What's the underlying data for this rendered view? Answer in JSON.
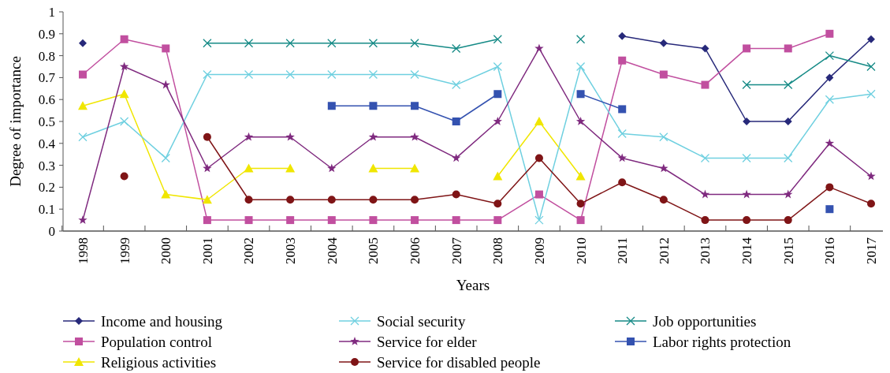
{
  "chart_data": {
    "type": "line",
    "xlabel": "Years",
    "ylabel": "Degree of importance",
    "categories": [
      "1998",
      "1999",
      "2000",
      "2001",
      "2002",
      "2003",
      "2004",
      "2005",
      "2006",
      "2007",
      "2008",
      "2009",
      "2010",
      "2011",
      "2012",
      "2013",
      "2014",
      "2015",
      "2016",
      "2017"
    ],
    "ylim": [
      0,
      1
    ],
    "yticks": [
      0,
      0.1,
      0.2,
      0.3,
      0.4,
      0.5,
      0.6,
      0.7,
      0.8,
      0.9,
      1
    ],
    "grid": false,
    "legend": "bottom",
    "series": [
      {
        "name": "Income and housing",
        "color": "#27297a",
        "marker": "diamond",
        "values": [
          0.857,
          null,
          null,
          null,
          null,
          null,
          null,
          null,
          null,
          null,
          null,
          null,
          null,
          0.889,
          0.857,
          0.833,
          0.5,
          0.5,
          0.7,
          0.875
        ]
      },
      {
        "name": "Population control",
        "color": "#c14f9f",
        "marker": "square",
        "values": [
          0.714,
          0.875,
          0.833,
          0.05,
          0.05,
          0.05,
          0.05,
          0.05,
          0.05,
          0.05,
          0.05,
          0.167,
          0.05,
          0.778,
          0.714,
          0.667,
          0.833,
          0.833,
          0.9,
          null
        ]
      },
      {
        "name": "Religious activities",
        "color": "#f0e600",
        "marker": "triangle",
        "values": [
          0.571,
          0.625,
          0.167,
          0.143,
          0.286,
          0.286,
          null,
          0.286,
          0.286,
          null,
          0.25,
          0.5,
          0.25,
          null,
          null,
          null,
          null,
          null,
          null,
          null
        ]
      },
      {
        "name": "Social security",
        "color": "#6fd0e0",
        "marker": "cross",
        "values": [
          0.429,
          0.5,
          0.333,
          0.714,
          0.714,
          0.714,
          0.714,
          0.714,
          0.714,
          0.667,
          0.75,
          0.05,
          0.75,
          0.444,
          0.429,
          0.333,
          0.333,
          0.333,
          0.6,
          0.625
        ]
      },
      {
        "name": "Service for elder",
        "color": "#7f2a7f",
        "marker": "star",
        "values": [
          0.05,
          0.75,
          0.667,
          0.286,
          0.429,
          0.429,
          0.286,
          0.429,
          0.429,
          0.333,
          0.5,
          0.833,
          0.5,
          0.333,
          0.286,
          0.167,
          0.167,
          0.167,
          0.4,
          0.25
        ]
      },
      {
        "name": "Service for disabled people",
        "color": "#7f1416",
        "marker": "circle",
        "values": [
          null,
          0.25,
          null,
          0.429,
          0.143,
          0.143,
          0.143,
          0.143,
          0.143,
          0.167,
          0.125,
          0.333,
          0.125,
          0.222,
          0.143,
          0.05,
          0.05,
          0.05,
          0.2,
          0.125
        ]
      },
      {
        "name": "Job opportunities",
        "color": "#158a86",
        "marker": "cross",
        "values": [
          null,
          null,
          null,
          0.857,
          0.857,
          0.857,
          0.857,
          0.857,
          0.857,
          0.833,
          0.875,
          null,
          0.875,
          null,
          null,
          null,
          0.667,
          0.667,
          0.8,
          0.75
        ]
      },
      {
        "name": "Labor rights protection",
        "color": "#3452b0",
        "marker": "square",
        "values": [
          null,
          null,
          null,
          null,
          null,
          null,
          0.571,
          0.571,
          0.571,
          0.5,
          0.625,
          null,
          0.625,
          0.556,
          null,
          null,
          null,
          null,
          0.1,
          null
        ]
      }
    ]
  }
}
